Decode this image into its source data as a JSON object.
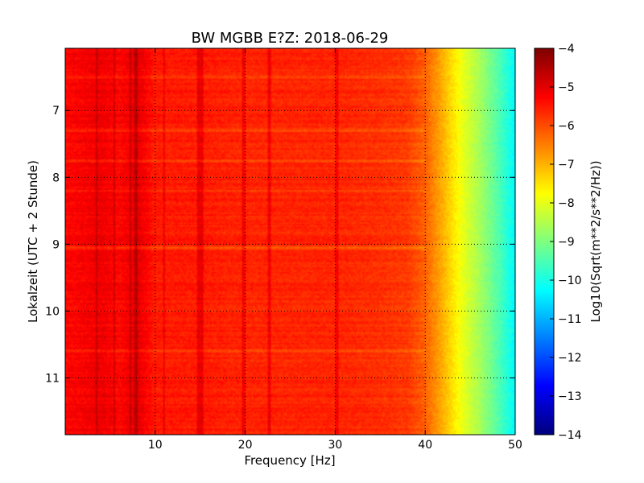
{
  "chart_data": {
    "type": "heatmap",
    "title": "BW MGBB E?Z: 2018-06-29",
    "xlabel": "Frequency [Hz]",
    "ylabel": "Lokalzeit (UTC + 2 Stunde)",
    "xlim": [
      0,
      50
    ],
    "ylim": [
      11.85,
      6.07
    ],
    "x_ticks": [
      {
        "value": 10,
        "label": "10"
      },
      {
        "value": 20,
        "label": "20"
      },
      {
        "value": 30,
        "label": "30"
      },
      {
        "value": 40,
        "label": "40"
      },
      {
        "value": 50,
        "label": "50"
      }
    ],
    "y_ticks": [
      {
        "value": 7,
        "label": "7"
      },
      {
        "value": 8,
        "label": "8"
      },
      {
        "value": 9,
        "label": "9"
      },
      {
        "value": 10,
        "label": "10"
      },
      {
        "value": 11,
        "label": "11"
      }
    ],
    "grid": true,
    "grid_style": "dotted",
    "colormap": "jet",
    "colorbar": {
      "label": "Log10(Sqrt(m**2/s**2/Hz))",
      "range": [
        -14,
        -4
      ],
      "ticks": [
        {
          "value": -4,
          "label": "−4"
        },
        {
          "value": -5,
          "label": "−5"
        },
        {
          "value": -6,
          "label": "−6"
        },
        {
          "value": -7,
          "label": "−7"
        },
        {
          "value": -8,
          "label": "−8"
        },
        {
          "value": -9,
          "label": "−9"
        },
        {
          "value": -10,
          "label": "−10"
        },
        {
          "value": -11,
          "label": "−11"
        },
        {
          "value": -12,
          "label": "−12"
        },
        {
          "value": -13,
          "label": "−13"
        },
        {
          "value": -14,
          "label": "−14"
        }
      ]
    },
    "frequency_profile": {
      "frequency": [
        0,
        2,
        4,
        6,
        8,
        10,
        15,
        20,
        25,
        30,
        35,
        38,
        40,
        42,
        44,
        46,
        48,
        50
      ],
      "log_amplitude": [
        -5.3,
        -5.2,
        -5.1,
        -5.3,
        -5.0,
        -5.5,
        -5.5,
        -5.6,
        -5.6,
        -5.6,
        -5.7,
        -5.8,
        -6.2,
        -7.0,
        -7.9,
        -8.6,
        -9.4,
        -10.3
      ]
    },
    "vertical_lines_hz": [
      3.5,
      5.5,
      7.2,
      7.8,
      8.0,
      11.0,
      14.8,
      15.2,
      19.8,
      22.7,
      30.2
    ],
    "horizontal_bands_hour": [
      6.5,
      7.3,
      7.75,
      8.2,
      9.05,
      10.6
    ]
  }
}
